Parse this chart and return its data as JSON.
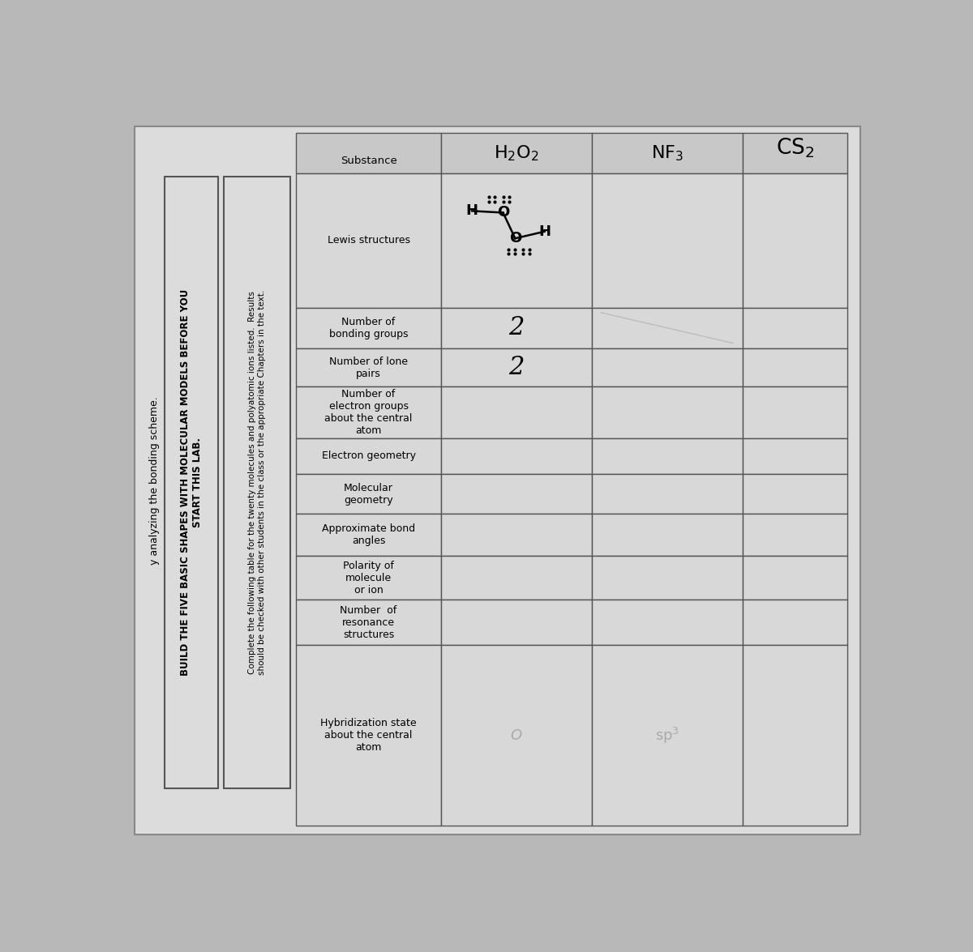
{
  "col_headers": [
    "Substance",
    "H₂O₂",
    "NF₃",
    "CS₂"
  ],
  "row_labels": [
    "Lewis structures",
    "Number of\nbonding groups",
    "Number of lone\npairs",
    "Number of\nelectron groups\nabout the central\natom",
    "Electron geometry",
    "Molecular\ngeometry",
    "Approximate bond\nangles",
    "Polarity of\nmolecule\nor ion",
    "Number  of\nresonance\nstructures",
    "Hybridization state\nabout the central\natom"
  ],
  "h2o2_bonding": "2",
  "h2o2_lone": "2",
  "h2o2_hybridization": "O",
  "nf3_hybridization": "sp³",
  "side_text_far": "y analyzing the bonding scheme.",
  "side_text_bold": "BUILD THE FIVE BASIC SHAPES WITH MOLECULAR MODELS BEFORE YOU\nSTART THIS LAB.",
  "side_text_normal": "Complete the following table for the twenty molecules and polyatomic ions listed.  Results\nshould be checked with other students in the class or the appropriate Chapters in the text.",
  "page_bg": "#b8b8b8",
  "paper_bg": "#dcdcdc",
  "table_cell_bg": "#d8d8d8",
  "header_cell_bg": "#c8c8c8",
  "border_color": "#555555"
}
